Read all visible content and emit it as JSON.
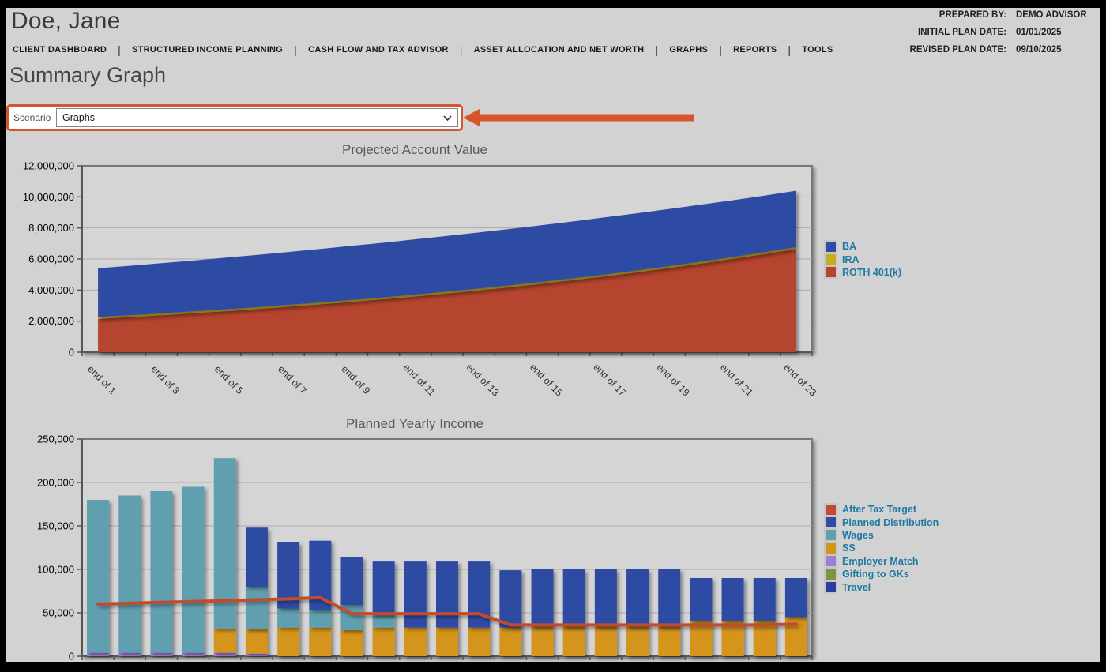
{
  "colors": {
    "page_bg": "#d2d2d2",
    "frame": "#000000",
    "accent_highlight": "#d6552c",
    "legend_text": "#1e7aa3"
  },
  "header": {
    "client_name": "Doe, Jane",
    "meta": [
      {
        "label": "PREPARED BY:",
        "value": "DEMO ADVISOR"
      },
      {
        "label": "INITIAL PLAN DATE:",
        "value": "01/01/2025"
      },
      {
        "label": "REVISED PLAN DATE:",
        "value": "09/10/2025"
      }
    ]
  },
  "nav": {
    "items": [
      "CLIENT DASHBOARD",
      "STRUCTURED INCOME PLANNING",
      "CASH FLOW AND TAX ADVISOR",
      "ASSET ALLOCATION AND NET WORTH",
      "GRAPHS",
      "REPORTS",
      "TOOLS"
    ]
  },
  "page_title": "Summary Graph",
  "scenario": {
    "label": "Scenario",
    "selected": "Graphs",
    "options": [
      "Graphs"
    ],
    "highlight_color": "#d6552c"
  },
  "icons": {
    "scenario_dropdown": "chevron-down-icon",
    "annotation": "arrow-pointing-left-icon"
  },
  "chart_data": [
    {
      "type": "area",
      "stacked": true,
      "title": "Projected Account Value",
      "categories": [
        1,
        2,
        3,
        4,
        5,
        6,
        7,
        8,
        9,
        10,
        11,
        12,
        13,
        14,
        15,
        16,
        17,
        18,
        19,
        20,
        21,
        22,
        23
      ],
      "x_tick_labels": [
        "end of 1",
        "end of 3",
        "end of 5",
        "end of 7",
        "end of 9",
        "end of 11",
        "end of 13",
        "end of 15",
        "end of 17",
        "end of 19",
        "end of 21",
        "end of 23"
      ],
      "ylim": [
        0,
        12000000
      ],
      "ytick_step": 2000000,
      "grid": true,
      "legend_position": "right",
      "series": [
        {
          "name": "ROTH 401(k)",
          "color": "#b5452f",
          "values": [
            2150000,
            2260000,
            2380000,
            2510000,
            2640000,
            2780000,
            2930000,
            3080000,
            3240000,
            3410000,
            3590000,
            3780000,
            3980000,
            4190000,
            4410000,
            4650000,
            4890000,
            5150000,
            5420000,
            5710000,
            6010000,
            6320000,
            6650000
          ]
        },
        {
          "name": "IRA",
          "color": "#c6ac1e",
          "values": [
            120000,
            120000,
            120000,
            120000,
            120000,
            120000,
            120000,
            120000,
            120000,
            120000,
            120000,
            120000,
            120000,
            120000,
            120000,
            120000,
            120000,
            120000,
            120000,
            120000,
            120000,
            120000,
            120000
          ]
        },
        {
          "name": "BA",
          "color": "#2e4ca4",
          "values": [
            3130000,
            3180000,
            3230000,
            3270000,
            3320000,
            3360000,
            3400000,
            3450000,
            3490000,
            3520000,
            3560000,
            3590000,
            3610000,
            3630000,
            3650000,
            3660000,
            3680000,
            3680000,
            3680000,
            3670000,
            3650000,
            3640000,
            3630000
          ]
        }
      ],
      "legend": [
        {
          "name": "BA",
          "color": "#2e4ca4"
        },
        {
          "name": "IRA",
          "color": "#c6ac1e"
        },
        {
          "name": "ROTH 401(k)",
          "color": "#b5452f"
        }
      ]
    },
    {
      "type": "bar",
      "stacked": true,
      "title": "Planned Yearly Income",
      "categories": [
        1,
        2,
        3,
        4,
        5,
        6,
        7,
        8,
        9,
        10,
        11,
        12,
        13,
        14,
        15,
        16,
        17,
        18,
        19,
        20,
        21,
        22,
        23
      ],
      "ylim": [
        0,
        250000
      ],
      "ytick_step": 50000,
      "grid": true,
      "legend_position": "right",
      "bar_series": [
        {
          "name": "Employer Match",
          "color": "#9d80d4",
          "values": [
            4000,
            4000,
            4000,
            4000,
            4000,
            3000,
            0,
            0,
            0,
            0,
            0,
            0,
            0,
            0,
            0,
            0,
            0,
            0,
            0,
            0,
            0,
            0,
            0
          ]
        },
        {
          "name": "SS",
          "color": "#d5941c",
          "values": [
            0,
            0,
            0,
            0,
            28000,
            28000,
            33000,
            33000,
            30000,
            33000,
            33000,
            33000,
            33000,
            33000,
            34000,
            34000,
            34000,
            34000,
            34000,
            40000,
            40000,
            40000,
            45000
          ]
        },
        {
          "name": "Wages",
          "color": "#5f9fb0",
          "values": [
            176000,
            181000,
            186000,
            191000,
            196000,
            49000,
            22000,
            20000,
            29000,
            15000,
            0,
            0,
            0,
            0,
            0,
            0,
            0,
            0,
            0,
            0,
            0,
            0,
            0
          ]
        },
        {
          "name": "Planned Distribution",
          "color": "#2e4ca4",
          "values": [
            0,
            0,
            0,
            0,
            0,
            68000,
            76000,
            80000,
            55000,
            61000,
            76000,
            76000,
            76000,
            66000,
            66000,
            66000,
            66000,
            66000,
            66000,
            50000,
            50000,
            50000,
            45000
          ]
        },
        {
          "name": "Gifting to GKs",
          "color": "#7e9442",
          "values": [
            0,
            0,
            0,
            0,
            0,
            0,
            0,
            0,
            0,
            0,
            0,
            0,
            0,
            0,
            0,
            0,
            0,
            0,
            0,
            0,
            0,
            0,
            0
          ]
        },
        {
          "name": "Travel",
          "color": "#2b3ea0",
          "values": [
            0,
            0,
            0,
            0,
            0,
            0,
            0,
            0,
            0,
            0,
            0,
            0,
            0,
            0,
            0,
            0,
            0,
            0,
            0,
            0,
            0,
            0,
            0
          ]
        }
      ],
      "line_series": {
        "name": "After Tax Target",
        "color": "#c24b2e",
        "values": [
          60000,
          61000,
          62000,
          63000,
          64000,
          65000,
          66000,
          67500,
          49000,
          49000,
          49000,
          49000,
          49000,
          36000,
          36000,
          36000,
          36000,
          36000,
          36000,
          36000,
          36000,
          36000,
          37000
        ]
      },
      "legend": [
        {
          "name": "After Tax Target",
          "color": "#c24b2e"
        },
        {
          "name": "Planned Distribution",
          "color": "#2e4ca4"
        },
        {
          "name": "Wages",
          "color": "#5f9fb0"
        },
        {
          "name": "SS",
          "color": "#d5941c"
        },
        {
          "name": "Employer Match",
          "color": "#9d80d4"
        },
        {
          "name": "Gifting to GKs",
          "color": "#7e9442"
        },
        {
          "name": "Travel",
          "color": "#2b3ea0"
        }
      ]
    }
  ]
}
